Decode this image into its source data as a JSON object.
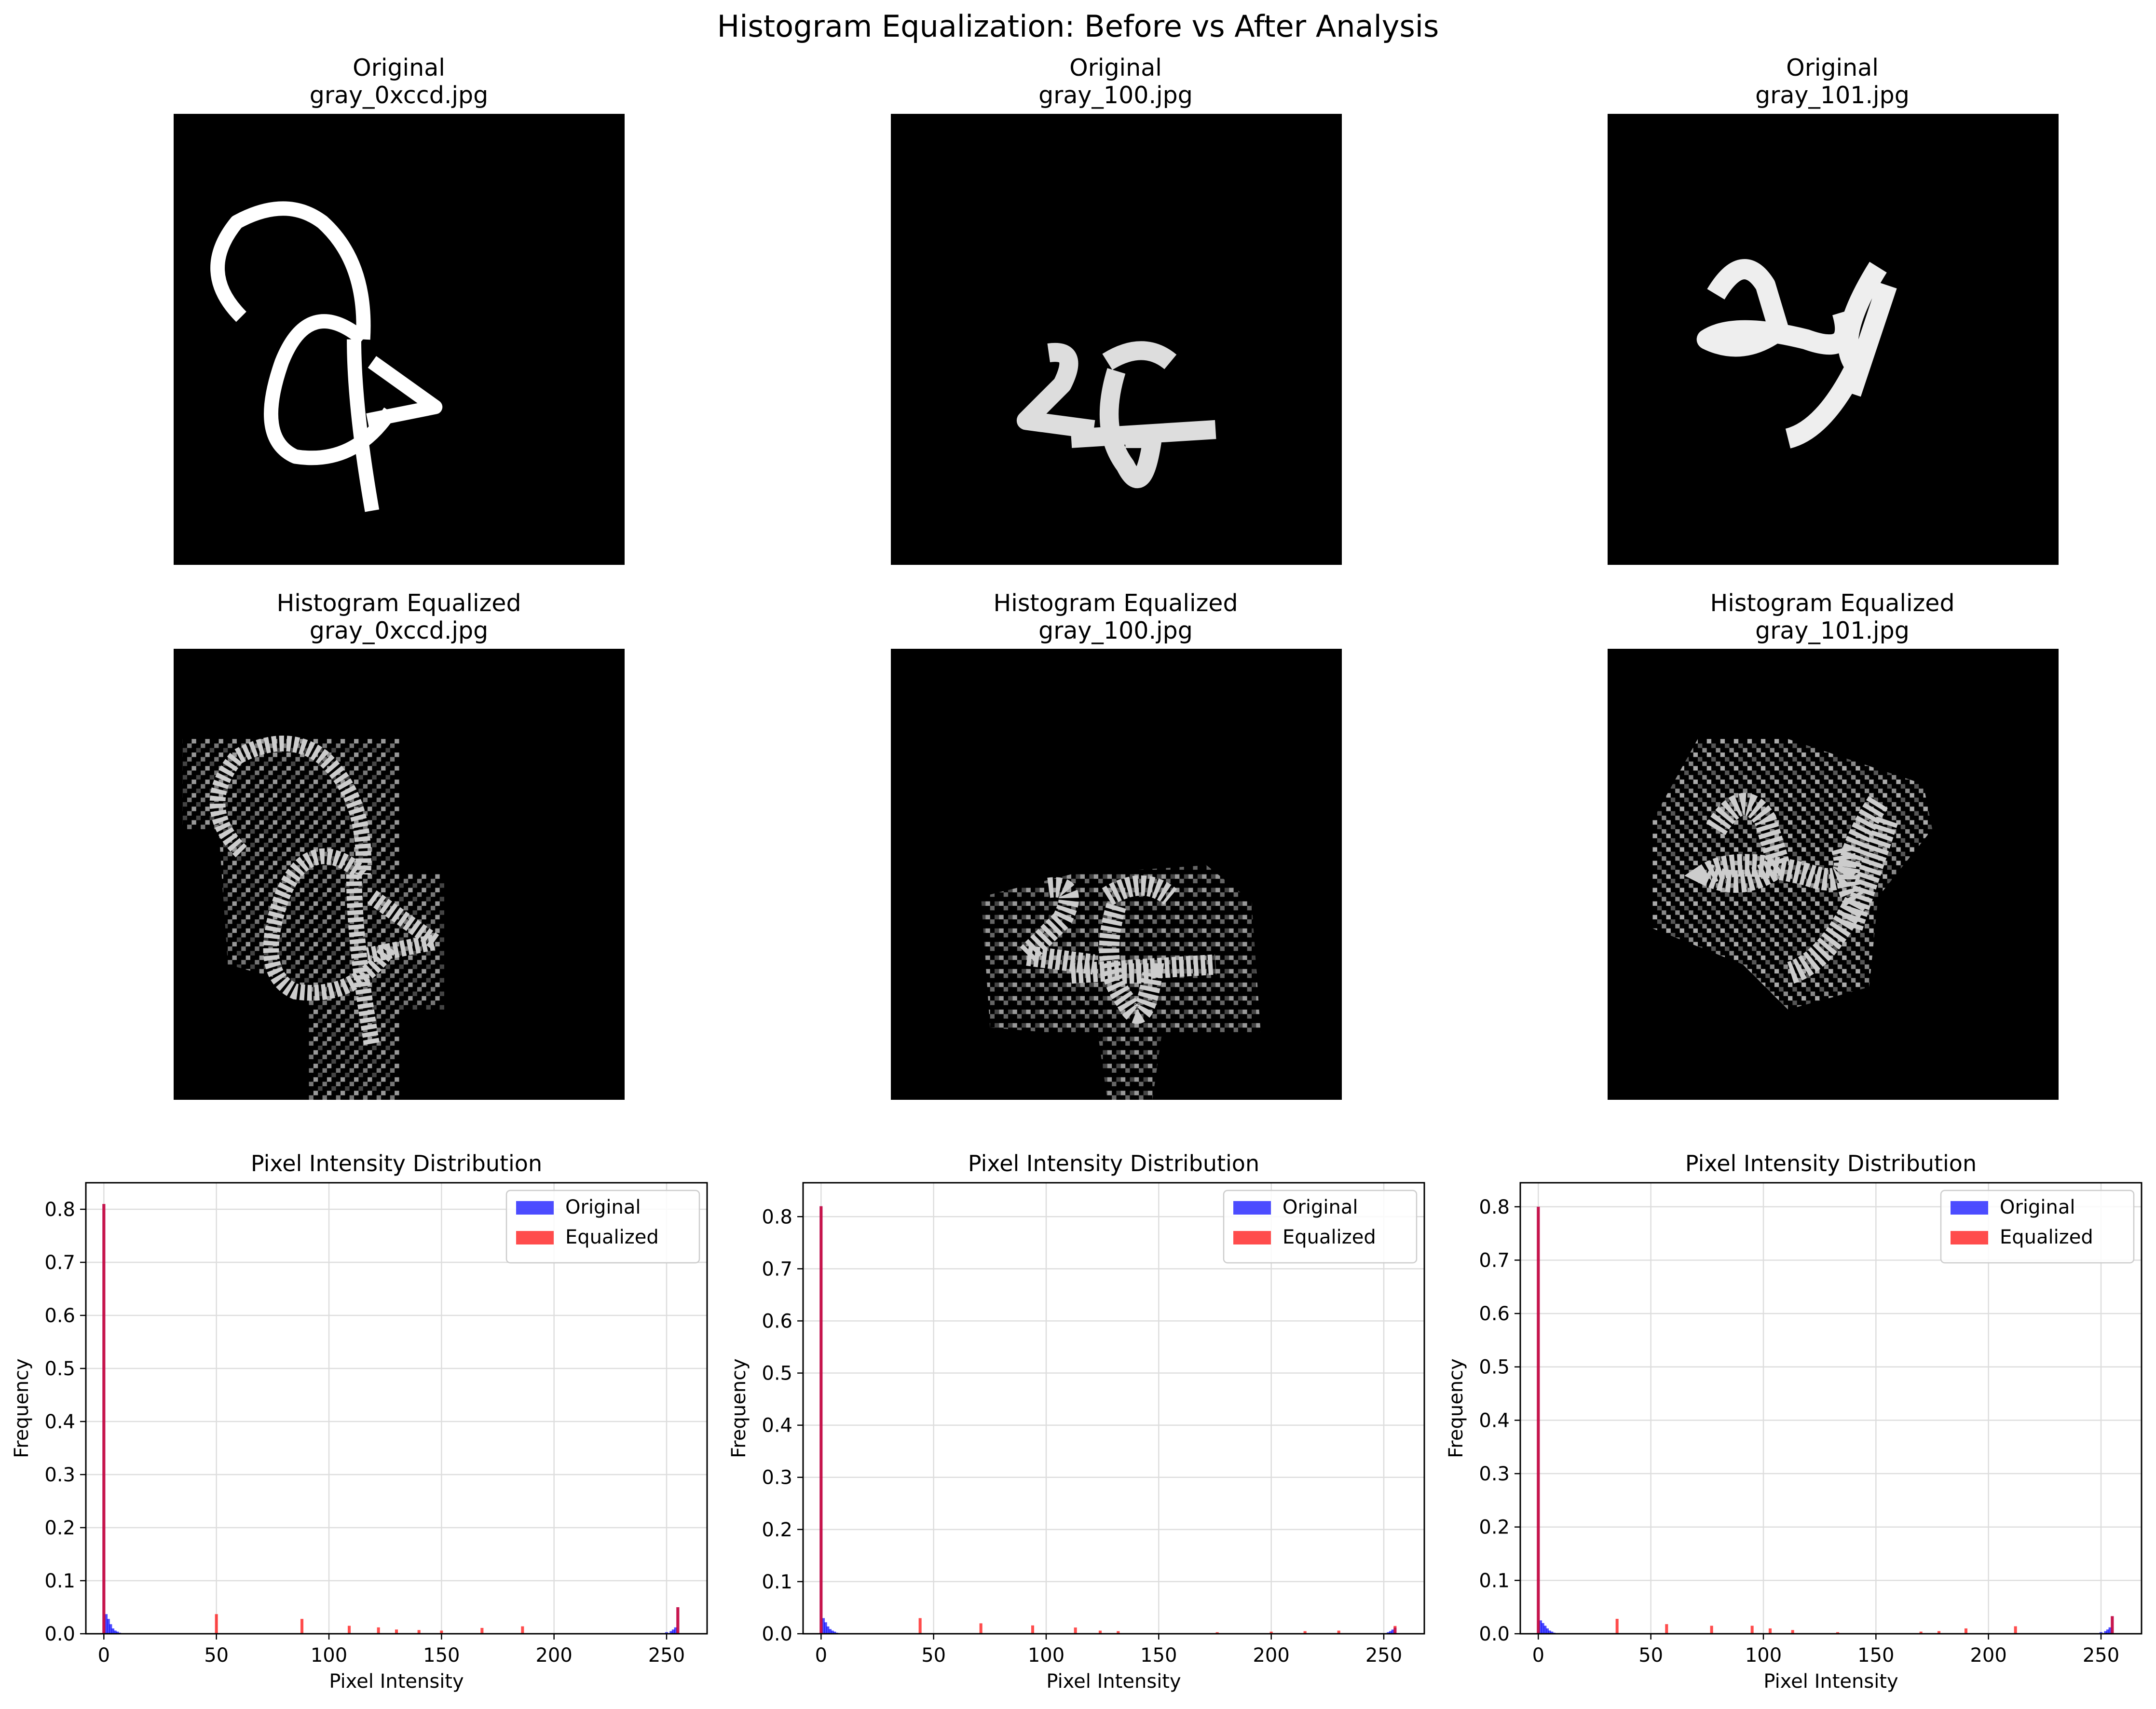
{
  "suptitle": "Histogram Equalization: Before vs After Analysis",
  "panels": [
    {
      "file": "gray_0xccd.jpg",
      "original_title": "Original",
      "equalized_title": "Histogram Equalized"
    },
    {
      "file": "gray_100.jpg",
      "original_title": "Original",
      "equalized_title": "Histogram Equalized"
    },
    {
      "file": "gray_101.jpg",
      "original_title": "Original",
      "equalized_title": "Histogram Equalized"
    }
  ],
  "colors": {
    "original": "#0000ff",
    "equalized": "#ff0000",
    "overlap": "#7a0a7a"
  },
  "chart_data": [
    {
      "type": "bar",
      "title": "Pixel Intensity Distribution",
      "xlabel": "Pixel Intensity",
      "ylabel": "Frequency",
      "xlim": [
        -8,
        268
      ],
      "ylim": [
        0,
        0.85
      ],
      "xticks": [
        0,
        50,
        100,
        150,
        200,
        250
      ],
      "yticks": [
        0.0,
        0.1,
        0.2,
        0.3,
        0.4,
        0.5,
        0.6,
        0.7,
        0.8
      ],
      "grid": true,
      "legend": "top-right",
      "series": [
        {
          "name": "Original",
          "x": [
            0,
            1,
            2,
            3,
            4,
            5,
            6,
            7,
            250,
            252,
            253,
            254,
            255
          ],
          "values": [
            0.81,
            0.037,
            0.028,
            0.018,
            0.01,
            0.006,
            0.004,
            0.002,
            0.003,
            0.005,
            0.008,
            0.012,
            0.05
          ]
        },
        {
          "name": "Equalized",
          "x": [
            0,
            50,
            88,
            109,
            122,
            130,
            140,
            150,
            168,
            186,
            255
          ],
          "values": [
            0.81,
            0.037,
            0.028,
            0.015,
            0.012,
            0.008,
            0.007,
            0.006,
            0.011,
            0.014,
            0.05
          ]
        }
      ]
    },
    {
      "type": "bar",
      "title": "Pixel Intensity Distribution",
      "xlabel": "Pixel Intensity",
      "ylabel": "Frequency",
      "xlim": [
        -8,
        268
      ],
      "ylim": [
        0,
        0.865
      ],
      "xticks": [
        0,
        50,
        100,
        150,
        200,
        250
      ],
      "yticks": [
        0.0,
        0.1,
        0.2,
        0.3,
        0.4,
        0.5,
        0.6,
        0.7,
        0.8
      ],
      "grid": true,
      "legend": "top-right",
      "series": [
        {
          "name": "Original",
          "x": [
            0,
            1,
            2,
            3,
            4,
            5,
            6,
            7,
            252,
            253,
            254,
            255
          ],
          "values": [
            0.82,
            0.03,
            0.022,
            0.014,
            0.009,
            0.006,
            0.004,
            0.002,
            0.003,
            0.005,
            0.008,
            0.012
          ]
        },
        {
          "name": "Equalized",
          "x": [
            0,
            44,
            71,
            94,
            113,
            124,
            132,
            176,
            200,
            215,
            230,
            255
          ],
          "values": [
            0.82,
            0.03,
            0.02,
            0.016,
            0.012,
            0.006,
            0.005,
            0.003,
            0.004,
            0.005,
            0.006,
            0.015
          ]
        }
      ]
    },
    {
      "type": "bar",
      "title": "Pixel Intensity Distribution",
      "xlabel": "Pixel Intensity",
      "ylabel": "Frequency",
      "xlim": [
        -8,
        268
      ],
      "ylim": [
        0,
        0.845
      ],
      "xticks": [
        0,
        50,
        100,
        150,
        200,
        250
      ],
      "yticks": [
        0.0,
        0.1,
        0.2,
        0.3,
        0.4,
        0.5,
        0.6,
        0.7,
        0.8
      ],
      "grid": true,
      "legend": "top-right",
      "series": [
        {
          "name": "Original",
          "x": [
            0,
            1,
            2,
            3,
            4,
            5,
            6,
            7,
            250,
            252,
            253,
            254,
            255
          ],
          "values": [
            0.8,
            0.025,
            0.02,
            0.015,
            0.01,
            0.006,
            0.004,
            0.002,
            0.003,
            0.005,
            0.008,
            0.012,
            0.033
          ]
        },
        {
          "name": "Equalized",
          "x": [
            0,
            35,
            57,
            77,
            95,
            103,
            113,
            133,
            170,
            178,
            190,
            212,
            255
          ],
          "values": [
            0.8,
            0.028,
            0.018,
            0.015,
            0.015,
            0.01,
            0.007,
            0.003,
            0.004,
            0.005,
            0.01,
            0.014,
            0.033
          ]
        }
      ]
    }
  ]
}
